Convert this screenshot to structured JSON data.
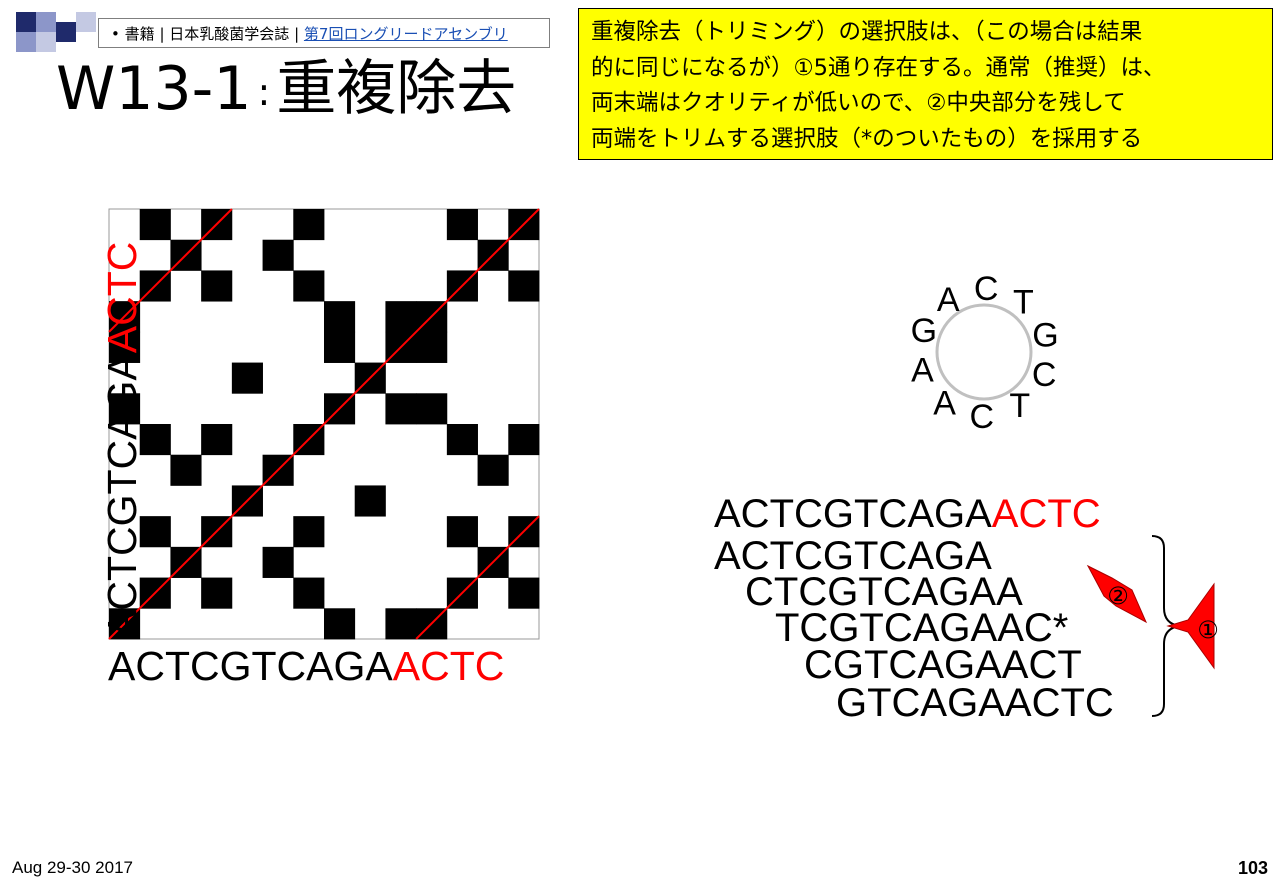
{
  "slide": {
    "source": {
      "bullet": "•",
      "book_label": "書籍",
      "separator1": "|",
      "society": "日本乳酸菌学会誌",
      "separator2": "|",
      "link_text": "第7回ロングリードアセンブリ"
    },
    "title": {
      "code": "W13-1",
      "colon": ":",
      "text": "重複除去"
    },
    "note_lines": [
      "重複除去（トリミング）の選択肢は、（この場合は結果",
      "的に同じになるが）①5通り存在する。通常（推奨）は、",
      "両末端はクオリティが低いので、②中央部分を残して",
      "両端をトリムする選択肢（*のついたもの）を採用する"
    ],
    "dotplot": {
      "x_sequence_black": "ACTCGTCAGA",
      "x_sequence_red": "ACTC",
      "y_sequence_black": "ACTCGTCAGA",
      "y_sequence_red": "ACTC",
      "sequence": "ACTCGTCAGAACTC"
    },
    "circle_letters": [
      "A",
      "C",
      "T",
      "G",
      "C",
      "T",
      "C",
      "A",
      "A",
      "G"
    ],
    "sequences": {
      "full_black": "ACTCGTCAGA",
      "full_red": "ACTC",
      "options": [
        "ACTCGTCAGA",
        "CTCGTCAGAA",
        "TCGTCAGAAC*",
        "CGTCAGAACT",
        "GTCAGAACTC"
      ]
    },
    "callouts": {
      "two": "②",
      "one": "①"
    },
    "colors": {
      "highlight": "#ff0000",
      "note_bg": "#ffff00",
      "deco_dark": "#1f2a6b",
      "deco_light": "#8c96c9"
    },
    "footer": {
      "date": "Aug 29-30 2017",
      "page": "103"
    }
  }
}
